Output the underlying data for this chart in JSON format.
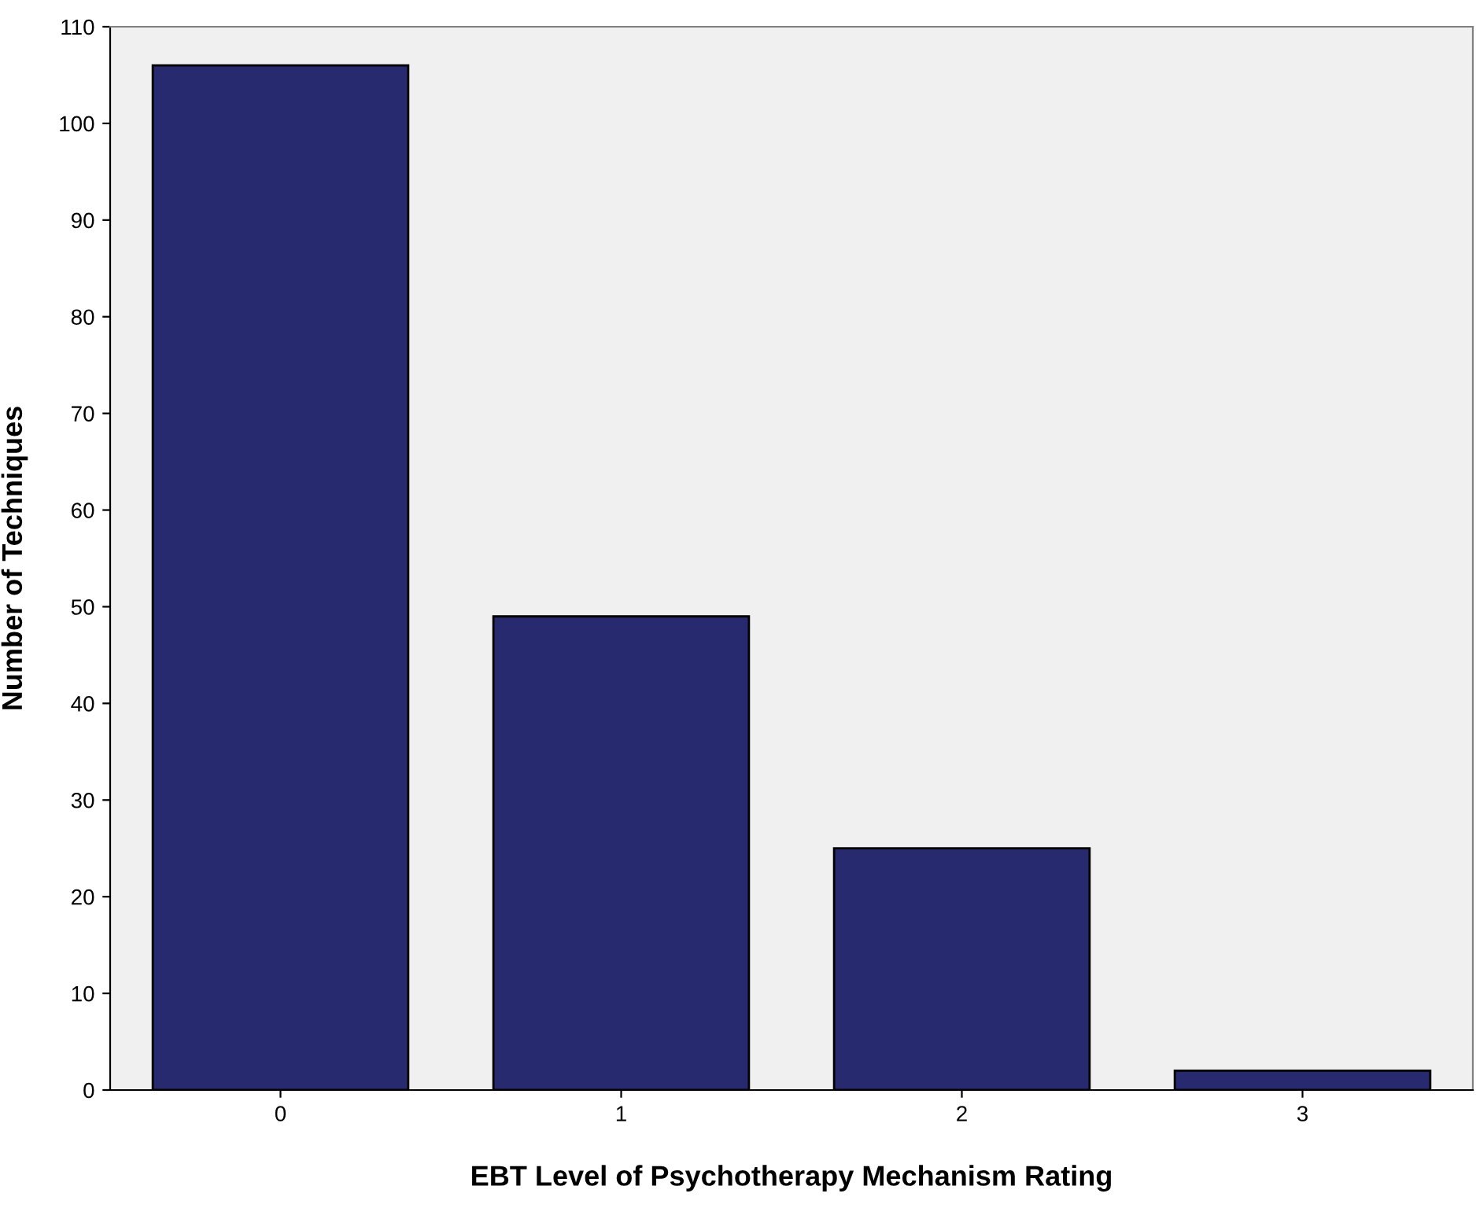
{
  "chart_data": {
    "type": "bar",
    "xlabel": "EBT Level of Psychotherapy Mechanism Rating",
    "ylabel": "Number of Techniques",
    "categories": [
      "0",
      "1",
      "2",
      "3"
    ],
    "values": [
      106,
      49,
      25,
      2
    ],
    "color": "#272a6e",
    "ylim": [
      0,
      110
    ],
    "yticks": [
      0,
      10,
      20,
      30,
      40,
      50,
      60,
      70,
      80,
      90,
      100,
      110
    ],
    "grid": false
  }
}
